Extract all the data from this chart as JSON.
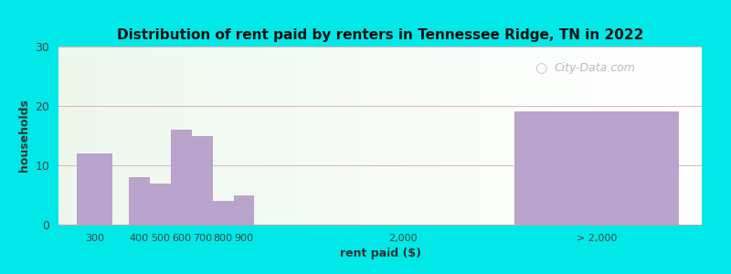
{
  "title": "Distribution of rent paid by renters in Tennessee Ridge, TN in 2022",
  "xlabel": "rent paid ($)",
  "ylabel": "households",
  "bar_color": "#b8a4cc",
  "background_outer": "#00e8e8",
  "ylim": [
    0,
    30
  ],
  "yticks": [
    0,
    10,
    20,
    30
  ],
  "values": [
    12,
    8,
    7,
    16,
    15,
    4,
    5,
    0,
    19
  ],
  "tick_labels": [
    "300",
    "400",
    "500",
    "600",
    "700",
    "800",
    "900",
    "2,000",
    "> 2,000"
  ],
  "watermark": "City-Data.com",
  "title_fontsize": 11,
  "axis_label_fontsize": 9,
  "tick_fontsize": 8
}
